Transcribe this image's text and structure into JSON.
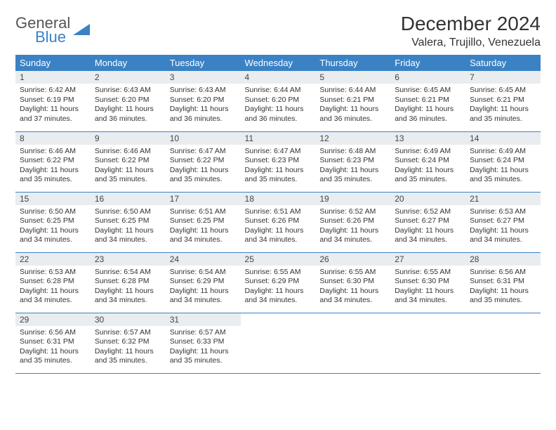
{
  "logo": {
    "line1": "General",
    "line2": "Blue"
  },
  "title": "December 2024",
  "location": "Valera, Trujillo, Venezuela",
  "colors": {
    "header_bg": "#3b82c4",
    "header_text": "#ffffff",
    "daynum_bg": "#e9edf0",
    "row_divider": "#3b82c4",
    "body_text": "#333333",
    "logo_gray": "#555555",
    "logo_blue": "#3b82c4",
    "page_bg": "#ffffff"
  },
  "typography": {
    "title_fontsize": 28,
    "location_fontsize": 16,
    "header_fontsize": 13,
    "daynum_fontsize": 12,
    "body_fontsize": 10.5
  },
  "columns": [
    "Sunday",
    "Monday",
    "Tuesday",
    "Wednesday",
    "Thursday",
    "Friday",
    "Saturday"
  ],
  "weeks": [
    [
      {
        "day": "1",
        "sunrise": "6:42 AM",
        "sunset": "6:19 PM",
        "daylight": "11 hours and 37 minutes."
      },
      {
        "day": "2",
        "sunrise": "6:43 AM",
        "sunset": "6:20 PM",
        "daylight": "11 hours and 36 minutes."
      },
      {
        "day": "3",
        "sunrise": "6:43 AM",
        "sunset": "6:20 PM",
        "daylight": "11 hours and 36 minutes."
      },
      {
        "day": "4",
        "sunrise": "6:44 AM",
        "sunset": "6:20 PM",
        "daylight": "11 hours and 36 minutes."
      },
      {
        "day": "5",
        "sunrise": "6:44 AM",
        "sunset": "6:21 PM",
        "daylight": "11 hours and 36 minutes."
      },
      {
        "day": "6",
        "sunrise": "6:45 AM",
        "sunset": "6:21 PM",
        "daylight": "11 hours and 36 minutes."
      },
      {
        "day": "7",
        "sunrise": "6:45 AM",
        "sunset": "6:21 PM",
        "daylight": "11 hours and 35 minutes."
      }
    ],
    [
      {
        "day": "8",
        "sunrise": "6:46 AM",
        "sunset": "6:22 PM",
        "daylight": "11 hours and 35 minutes."
      },
      {
        "day": "9",
        "sunrise": "6:46 AM",
        "sunset": "6:22 PM",
        "daylight": "11 hours and 35 minutes."
      },
      {
        "day": "10",
        "sunrise": "6:47 AM",
        "sunset": "6:22 PM",
        "daylight": "11 hours and 35 minutes."
      },
      {
        "day": "11",
        "sunrise": "6:47 AM",
        "sunset": "6:23 PM",
        "daylight": "11 hours and 35 minutes."
      },
      {
        "day": "12",
        "sunrise": "6:48 AM",
        "sunset": "6:23 PM",
        "daylight": "11 hours and 35 minutes."
      },
      {
        "day": "13",
        "sunrise": "6:49 AM",
        "sunset": "6:24 PM",
        "daylight": "11 hours and 35 minutes."
      },
      {
        "day": "14",
        "sunrise": "6:49 AM",
        "sunset": "6:24 PM",
        "daylight": "11 hours and 35 minutes."
      }
    ],
    [
      {
        "day": "15",
        "sunrise": "6:50 AM",
        "sunset": "6:25 PM",
        "daylight": "11 hours and 34 minutes."
      },
      {
        "day": "16",
        "sunrise": "6:50 AM",
        "sunset": "6:25 PM",
        "daylight": "11 hours and 34 minutes."
      },
      {
        "day": "17",
        "sunrise": "6:51 AM",
        "sunset": "6:25 PM",
        "daylight": "11 hours and 34 minutes."
      },
      {
        "day": "18",
        "sunrise": "6:51 AM",
        "sunset": "6:26 PM",
        "daylight": "11 hours and 34 minutes."
      },
      {
        "day": "19",
        "sunrise": "6:52 AM",
        "sunset": "6:26 PM",
        "daylight": "11 hours and 34 minutes."
      },
      {
        "day": "20",
        "sunrise": "6:52 AM",
        "sunset": "6:27 PM",
        "daylight": "11 hours and 34 minutes."
      },
      {
        "day": "21",
        "sunrise": "6:53 AM",
        "sunset": "6:27 PM",
        "daylight": "11 hours and 34 minutes."
      }
    ],
    [
      {
        "day": "22",
        "sunrise": "6:53 AM",
        "sunset": "6:28 PM",
        "daylight": "11 hours and 34 minutes."
      },
      {
        "day": "23",
        "sunrise": "6:54 AM",
        "sunset": "6:28 PM",
        "daylight": "11 hours and 34 minutes."
      },
      {
        "day": "24",
        "sunrise": "6:54 AM",
        "sunset": "6:29 PM",
        "daylight": "11 hours and 34 minutes."
      },
      {
        "day": "25",
        "sunrise": "6:55 AM",
        "sunset": "6:29 PM",
        "daylight": "11 hours and 34 minutes."
      },
      {
        "day": "26",
        "sunrise": "6:55 AM",
        "sunset": "6:30 PM",
        "daylight": "11 hours and 34 minutes."
      },
      {
        "day": "27",
        "sunrise": "6:55 AM",
        "sunset": "6:30 PM",
        "daylight": "11 hours and 34 minutes."
      },
      {
        "day": "28",
        "sunrise": "6:56 AM",
        "sunset": "6:31 PM",
        "daylight": "11 hours and 35 minutes."
      }
    ],
    [
      {
        "day": "29",
        "sunrise": "6:56 AM",
        "sunset": "6:31 PM",
        "daylight": "11 hours and 35 minutes."
      },
      {
        "day": "30",
        "sunrise": "6:57 AM",
        "sunset": "6:32 PM",
        "daylight": "11 hours and 35 minutes."
      },
      {
        "day": "31",
        "sunrise": "6:57 AM",
        "sunset": "6:33 PM",
        "daylight": "11 hours and 35 minutes."
      },
      null,
      null,
      null,
      null
    ]
  ],
  "labels": {
    "sunrise": "Sunrise:",
    "sunset": "Sunset:",
    "daylight": "Daylight:"
  }
}
